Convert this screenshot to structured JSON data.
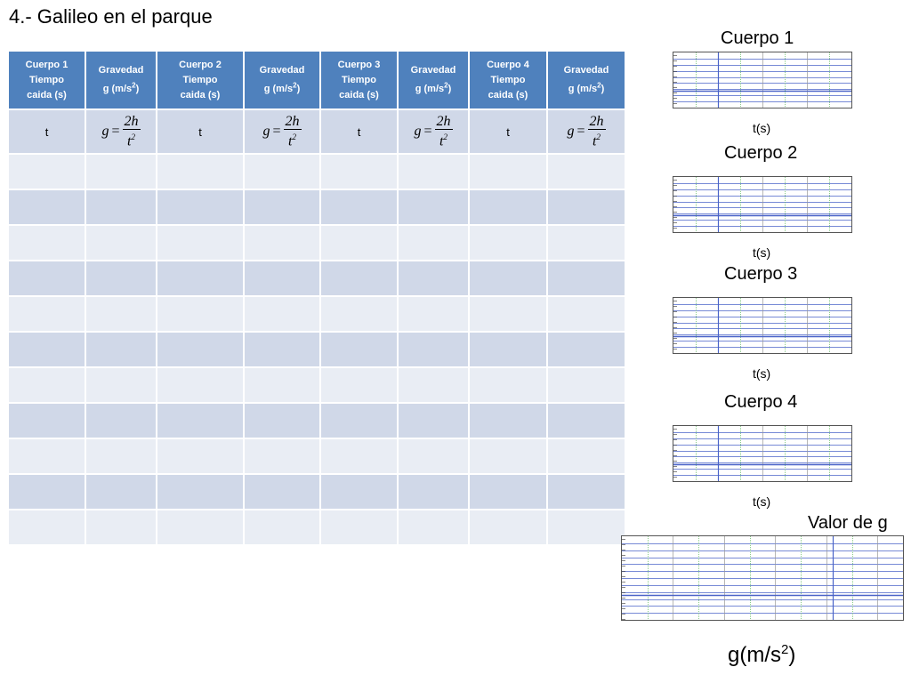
{
  "title": "4.- Galileo en el parque",
  "table": {
    "headers": [
      [
        "Cuerpo 1",
        "Tiempo",
        "caida (s)"
      ],
      [
        "Gravedad",
        "g (m/s2)"
      ],
      [
        "Cuerpo 2",
        "Tiempo",
        "caida (s)"
      ],
      [
        "Gravedad",
        "g (m/s2)"
      ],
      [
        "Cuerpo 3",
        "Tiempo",
        "caida (s)"
      ],
      [
        "Gravedad",
        "g (m/s2)"
      ],
      [
        "Cuerpo 4",
        "Tiempo",
        "caida (s)"
      ],
      [
        "Gravedad",
        "g (m/s2)"
      ]
    ],
    "time_symbol": "t",
    "formula": {
      "lhs": "g",
      "eq": "=",
      "numerator": "2h",
      "denominator": "t",
      "exponent": "2"
    },
    "empty_rows": 11
  },
  "graphs": [
    {
      "title": "Cuerpo 1",
      "xlabel": "t(s)"
    },
    {
      "title": "Cuerpo 2",
      "xlabel": "t(s)"
    },
    {
      "title": "Cuerpo 3",
      "xlabel": "t(s)"
    },
    {
      "title": "Cuerpo 4",
      "xlabel": "t(s)"
    }
  ],
  "final_graph": {
    "title": "Valor de g",
    "xlabel_base": "g(m/s",
    "xlabel_exp": "2",
    "xlabel_end": ")"
  },
  "colors": {
    "header": "#4f81bd",
    "row_odd": "#d0d8e8",
    "row_even": "#e9edf4",
    "grid_blue": "#4a63c8",
    "grid_green": "#5bb85b"
  }
}
